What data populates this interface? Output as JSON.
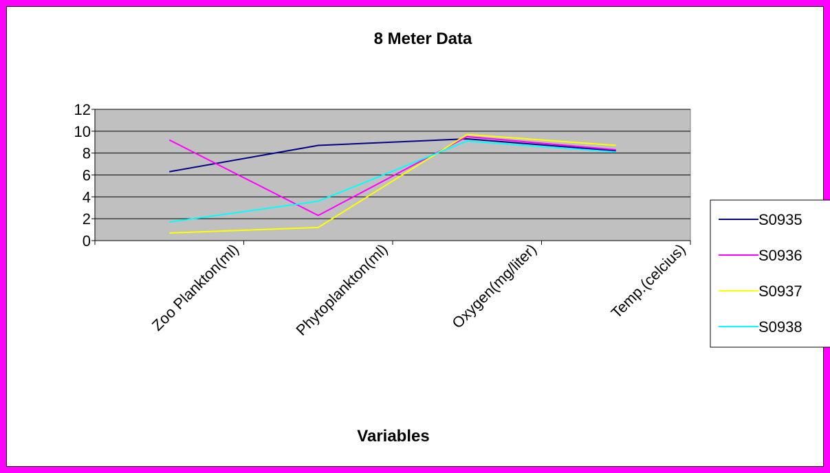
{
  "chart_data": {
    "type": "line",
    "title": "8 Meter Data",
    "xlabel": "Variables",
    "ylabel": "",
    "categories": [
      "Zoo Plankton(ml)",
      "Phytoplankton(ml)",
      "Oxygen(mg/liter)",
      "Temp.(celcius)"
    ],
    "ylim": [
      0,
      12
    ],
    "yticks": [
      "0",
      "2",
      "4",
      "6",
      "8",
      "10",
      "12"
    ],
    "grid": true,
    "legend_position": "right",
    "plot_background": "#c0c0c0",
    "series": [
      {
        "name": "S0935",
        "color": "#000080",
        "values": [
          6.3,
          8.7,
          9.3,
          8.2
        ]
      },
      {
        "name": "S0936",
        "color": "#ff00ff",
        "values": [
          9.2,
          2.3,
          9.5,
          8.3
        ]
      },
      {
        "name": "S0937",
        "color": "#ffff00",
        "values": [
          0.7,
          1.2,
          9.7,
          8.7
        ]
      },
      {
        "name": "S0938",
        "color": "#00ffff",
        "values": [
          1.7,
          3.6,
          9.1,
          8.1
        ]
      }
    ]
  }
}
